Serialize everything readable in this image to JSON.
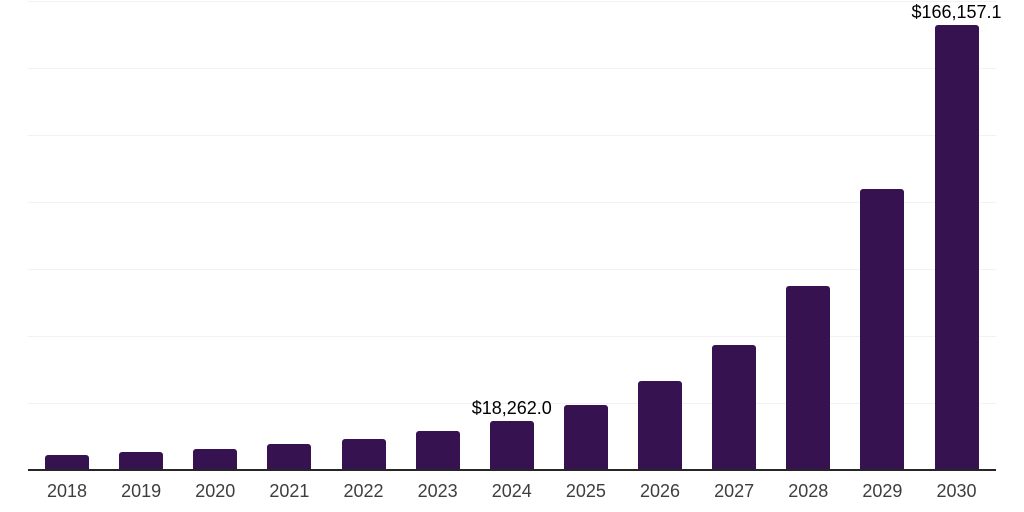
{
  "chart_data": {
    "type": "bar",
    "title": "",
    "xlabel": "",
    "ylabel": "",
    "legend_position": "none",
    "grid": "horizontal",
    "categories": [
      "2018",
      "2019",
      "2020",
      "2021",
      "2022",
      "2023",
      "2024",
      "2025",
      "2026",
      "2027",
      "2028",
      "2029",
      "2030"
    ],
    "values": [
      5600,
      6700,
      7700,
      9600,
      11700,
      14500,
      18262.0,
      24100,
      33200,
      46600,
      68800,
      105000,
      166157.1
    ],
    "data_labels": [
      "",
      "",
      "",
      "",
      "",
      "",
      "$18,262.0",
      "",
      "",
      "",
      "",
      "",
      "$166,157.1"
    ],
    "ylim": [
      0,
      175000
    ],
    "gridline_step": 25000,
    "y_axis_ticks_visible": false
  },
  "style": {
    "bar_color": "#371250",
    "gridline_color": "#f2f2f2",
    "axis_color": "#262626",
    "data_label_color": "#000000",
    "tick_label_color": "#3e3e3e",
    "background_color": "#ffffff"
  }
}
